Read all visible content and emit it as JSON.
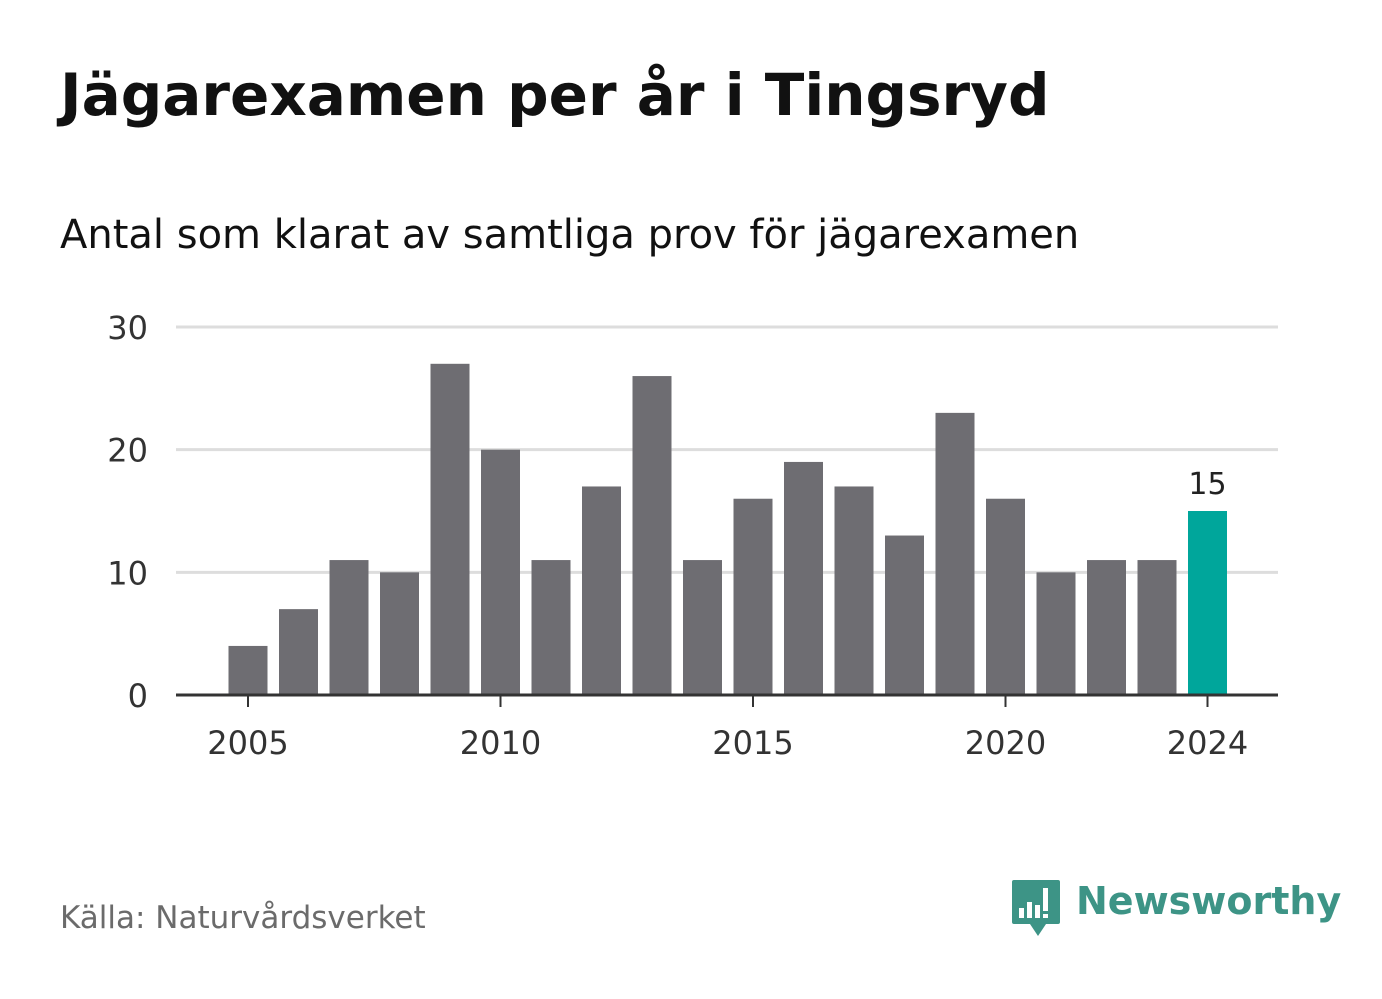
{
  "title": "Jägarexamen per år i Tingsryd",
  "subtitle": "Antal som klarat av samtliga prov för jägarexamen",
  "source": "Källa: Naturvårdsverket",
  "brand": {
    "name": "Newsworthy",
    "icon": "newsworthy-logo-icon",
    "color": "#3d9486"
  },
  "colors": {
    "bar": "#6e6d72",
    "highlight": "#00a69b",
    "grid": "#dddddd",
    "axis": "#333333"
  },
  "chart_data": {
    "type": "bar",
    "title": "Jägarexamen per år i Tingsryd",
    "subtitle": "Antal som klarat av samtliga prov för jägarexamen",
    "xlabel": "",
    "ylabel": "",
    "categories": [
      2005,
      2006,
      2007,
      2008,
      2009,
      2010,
      2011,
      2012,
      2013,
      2014,
      2015,
      2016,
      2017,
      2018,
      2019,
      2020,
      2021,
      2022,
      2023,
      2024
    ],
    "values": [
      4,
      7,
      11,
      10,
      27,
      20,
      11,
      17,
      26,
      11,
      16,
      19,
      17,
      13,
      23,
      16,
      10,
      11,
      11,
      15
    ],
    "ylim": [
      0,
      30
    ],
    "yticks": [
      0,
      10,
      20,
      30
    ],
    "xticks": [
      2005,
      2010,
      2015,
      2020,
      2024
    ],
    "highlight": {
      "category": 2024,
      "label": "15"
    },
    "grid": true,
    "legend": "none"
  }
}
